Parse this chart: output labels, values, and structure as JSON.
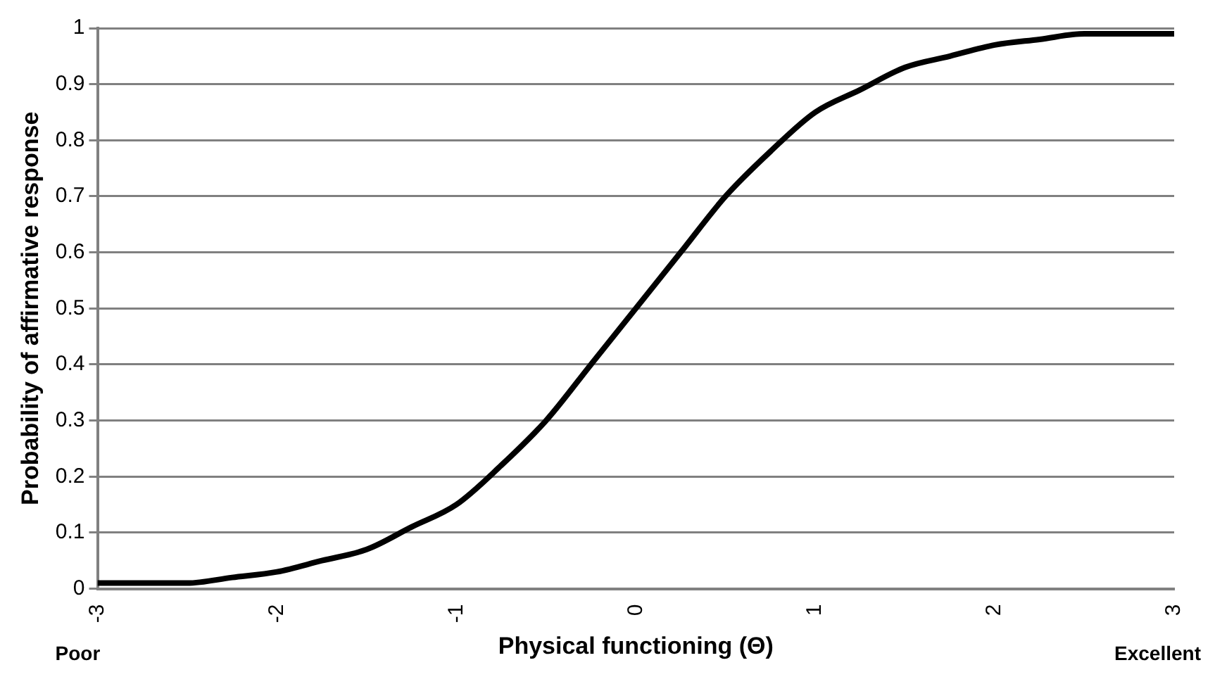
{
  "chart_data": {
    "type": "line",
    "xlabel": "Physical functioning (Θ)",
    "ylabel": "Probability of affirmative response",
    "x": [
      -3,
      -2.75,
      -2.5,
      -2.25,
      -2,
      -1.75,
      -1.5,
      -1.25,
      -1,
      -0.75,
      -0.5,
      -0.25,
      0,
      0.25,
      0.5,
      0.75,
      1,
      1.25,
      1.5,
      1.75,
      2,
      2.25,
      2.5,
      2.75,
      3
    ],
    "series": [
      {
        "color": "#000000",
        "values": [
          0.01,
          0.01,
          0.01,
          0.02,
          0.03,
          0.05,
          0.07,
          0.11,
          0.15,
          0.22,
          0.3,
          0.4,
          0.5,
          0.6,
          0.7,
          0.78,
          0.85,
          0.89,
          0.93,
          0.95,
          0.97,
          0.98,
          0.99,
          0.99,
          0.99
        ]
      }
    ],
    "xlim": [
      -3,
      3
    ],
    "xticks": [
      -3,
      -2,
      -1,
      0,
      1,
      2,
      3
    ],
    "ylim": [
      0,
      1
    ],
    "yticks": [
      0,
      0.1,
      0.2,
      0.3,
      0.4,
      0.5,
      0.6,
      0.7,
      0.8,
      0.9,
      1
    ],
    "grid": "y",
    "legend": false,
    "marker": "none",
    "line_style": "solid",
    "annotations": [
      "Poor",
      "Excellent"
    ]
  }
}
